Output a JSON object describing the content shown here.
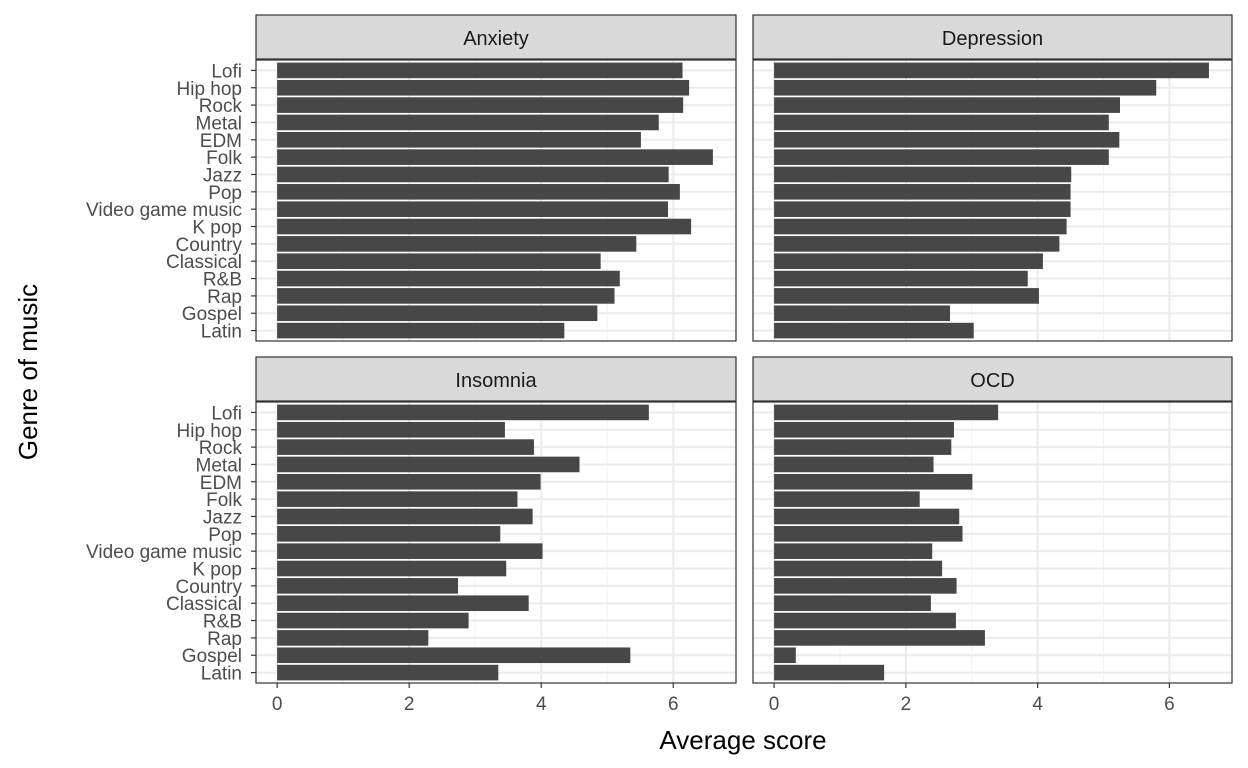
{
  "chart_data": {
    "type": "bar",
    "orientation": "horizontal",
    "xlabel": "Average score",
    "ylabel": "Genre of music",
    "xlim": [
      -0.32,
      6.95
    ],
    "xticks": [
      0,
      2,
      4,
      6
    ],
    "grid": true,
    "bar_color": "#474747",
    "strip_color": "#d9d9d9",
    "categories": [
      "Lofi",
      "Hip hop",
      "Rock",
      "Metal",
      "EDM",
      "Folk",
      "Jazz",
      "Pop",
      "Video game music",
      "K pop",
      "Country",
      "Classical",
      "R&B",
      "Rap",
      "Gospel",
      "Latin"
    ],
    "panels": [
      {
        "name": "Anxiety",
        "values": [
          6.14,
          6.24,
          6.15,
          5.78,
          5.51,
          6.6,
          5.93,
          6.1,
          5.92,
          6.27,
          5.44,
          4.9,
          5.19,
          5.11,
          4.85,
          4.35
        ]
      },
      {
        "name": "Depression",
        "values": [
          6.6,
          5.8,
          5.25,
          5.08,
          5.24,
          5.08,
          4.51,
          4.5,
          4.5,
          4.44,
          4.33,
          4.08,
          3.85,
          4.02,
          2.67,
          3.03
        ]
      },
      {
        "name": "Insomnia",
        "values": [
          5.63,
          3.45,
          3.89,
          4.58,
          3.99,
          3.64,
          3.87,
          3.38,
          4.02,
          3.47,
          2.74,
          3.81,
          2.9,
          2.29,
          5.35,
          3.35
        ]
      },
      {
        "name": "OCD",
        "values": [
          3.4,
          2.73,
          2.69,
          2.42,
          3.01,
          2.21,
          2.81,
          2.86,
          2.4,
          2.55,
          2.77,
          2.38,
          2.76,
          3.2,
          0.33,
          1.67
        ]
      }
    ]
  }
}
